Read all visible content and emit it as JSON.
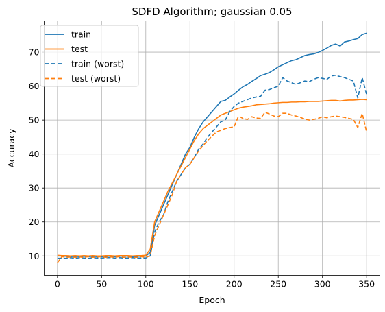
{
  "chart_data": {
    "type": "line",
    "title": "SDFD Algorithm; gaussian 0.05",
    "xlabel": "Epoch",
    "ylabel": "Accuracy",
    "xlim": [
      -15,
      365
    ],
    "ylim": [
      4.3,
      79.2
    ],
    "xticks": [
      0,
      50,
      100,
      150,
      200,
      250,
      300,
      350
    ],
    "yticks": [
      10,
      20,
      30,
      40,
      50,
      60,
      70
    ],
    "grid": true,
    "legend_position": "top-left",
    "series": [
      {
        "name": "train",
        "color": "#1f77b4",
        "dash": "solid",
        "x": [
          0,
          5,
          10,
          15,
          20,
          25,
          30,
          35,
          40,
          45,
          50,
          55,
          60,
          65,
          70,
          75,
          80,
          85,
          90,
          95,
          100,
          105,
          110,
          115,
          120,
          125,
          130,
          135,
          140,
          145,
          150,
          155,
          160,
          165,
          170,
          175,
          180,
          185,
          190,
          195,
          200,
          205,
          210,
          215,
          220,
          225,
          230,
          235,
          240,
          245,
          250,
          255,
          260,
          265,
          270,
          275,
          280,
          285,
          290,
          295,
          300,
          305,
          310,
          315,
          320,
          325,
          330,
          335,
          340,
          345,
          350
        ],
        "y": [
          10,
          10,
          9.9,
          9.8,
          9.9,
          9.8,
          9.9,
          9.8,
          9.9,
          9.8,
          9.8,
          9.9,
          9.9,
          9.8,
          9.9,
          10.0,
          9.9,
          9.8,
          9.9,
          9.9,
          10,
          11,
          19,
          22,
          25,
          28,
          31,
          34,
          37,
          40,
          42,
          45,
          47.5,
          49.5,
          51,
          52.5,
          54,
          55.5,
          55.8,
          56.8,
          57.7,
          58.8,
          59.8,
          60.5,
          61.4,
          62.2,
          63.1,
          63.5,
          64,
          64.8,
          65.7,
          66.3,
          66.9,
          67.5,
          67.8,
          68.4,
          69,
          69.3,
          69.5,
          69.9,
          70.5,
          71.2,
          72,
          72.4,
          71.8,
          73,
          73.3,
          73.7,
          74,
          75.2,
          75.6
        ]
      },
      {
        "name": "test",
        "color": "#ff7f0e",
        "dash": "solid",
        "x": [
          0,
          5,
          10,
          15,
          20,
          25,
          30,
          35,
          40,
          45,
          50,
          55,
          60,
          65,
          70,
          75,
          80,
          85,
          90,
          95,
          100,
          105,
          110,
          115,
          120,
          125,
          130,
          135,
          140,
          145,
          150,
          155,
          160,
          165,
          170,
          175,
          180,
          185,
          190,
          195,
          200,
          205,
          210,
          215,
          220,
          225,
          230,
          235,
          240,
          245,
          250,
          255,
          260,
          265,
          270,
          275,
          280,
          285,
          290,
          295,
          300,
          305,
          310,
          315,
          320,
          325,
          330,
          335,
          340,
          345,
          350
        ],
        "y": [
          10.2,
          10.1,
          10.1,
          10,
          10.1,
          10,
          10.1,
          10,
          10.1,
          10,
          10,
          10.1,
          10.1,
          10,
          10.1,
          10.1,
          10.1,
          10,
          10.1,
          10.1,
          10.2,
          12,
          20,
          23,
          26,
          29,
          31.5,
          34,
          36.5,
          39,
          41.5,
          44,
          46,
          47.5,
          48.5,
          49.5,
          50.5,
          51.5,
          52,
          52.5,
          53,
          53.5,
          53.8,
          54,
          54.2,
          54.5,
          54.6,
          54.7,
          54.8,
          55,
          55.1,
          55.2,
          55.2,
          55.3,
          55.3,
          55.4,
          55.4,
          55.5,
          55.5,
          55.5,
          55.6,
          55.7,
          55.8,
          55.8,
          55.6,
          55.8,
          55.9,
          55.9,
          56,
          56.1,
          56
        ]
      },
      {
        "name": "train (worst)",
        "color": "#1f77b4",
        "dash": "dashed",
        "x": [
          0,
          5,
          10,
          15,
          20,
          25,
          30,
          35,
          40,
          45,
          50,
          55,
          60,
          65,
          70,
          75,
          80,
          85,
          90,
          95,
          100,
          105,
          110,
          115,
          120,
          125,
          130,
          135,
          140,
          145,
          150,
          155,
          160,
          165,
          170,
          175,
          180,
          185,
          190,
          195,
          200,
          205,
          210,
          215,
          220,
          225,
          230,
          235,
          240,
          245,
          250,
          255,
          260,
          265,
          270,
          275,
          280,
          285,
          290,
          295,
          300,
          305,
          310,
          315,
          320,
          325,
          330,
          335,
          340,
          345,
          350
        ],
        "y": [
          9.3,
          9.3,
          9.3,
          9.5,
          9.3,
          9.5,
          9.4,
          9.3,
          9.5,
          9.4,
          9.4,
          9.5,
          9.5,
          9.4,
          9.5,
          9.4,
          9.4,
          9.5,
          9.4,
          9.4,
          9.4,
          10,
          17,
          20,
          22,
          26,
          29,
          32,
          34,
          36,
          37,
          39,
          41.5,
          43,
          45,
          46.5,
          48,
          49.5,
          50,
          52.5,
          54,
          55,
          55.5,
          56,
          56.5,
          56.8,
          57,
          58.8,
          59,
          59.5,
          60,
          62.5,
          61.5,
          61,
          60.5,
          61,
          61.5,
          61.3,
          62,
          62.5,
          62.3,
          62,
          63,
          63.2,
          62.8,
          62.5,
          62,
          61.5,
          56.5,
          62.5,
          57.5
        ]
      },
      {
        "name": "test (worst)",
        "color": "#ff7f0e",
        "dash": "dashed",
        "x": [
          0,
          5,
          10,
          15,
          20,
          25,
          30,
          35,
          40,
          45,
          50,
          55,
          60,
          65,
          70,
          75,
          80,
          85,
          90,
          95,
          100,
          105,
          110,
          115,
          120,
          125,
          130,
          135,
          140,
          145,
          150,
          155,
          160,
          165,
          170,
          175,
          180,
          185,
          190,
          195,
          200,
          205,
          210,
          215,
          220,
          225,
          230,
          235,
          240,
          245,
          250,
          255,
          260,
          265,
          270,
          275,
          280,
          285,
          290,
          295,
          300,
          305,
          310,
          315,
          320,
          325,
          330,
          335,
          340,
          345,
          350
        ],
        "y": [
          8,
          9.8,
          9.6,
          9.7,
          9.6,
          9.7,
          9.6,
          9.8,
          9.6,
          9.7,
          9.8,
          9.6,
          9.7,
          9.6,
          9.8,
          9.6,
          9.7,
          9.6,
          9.6,
          9.8,
          9.6,
          10,
          16,
          19,
          22,
          25,
          28,
          32,
          34,
          36,
          37,
          39,
          41,
          42.5,
          44,
          45.3,
          46.5,
          47,
          47.5,
          47.8,
          48,
          51.2,
          50.5,
          50.2,
          51,
          50.6,
          50.5,
          52.3,
          51.8,
          51.2,
          51,
          52,
          52,
          51.5,
          51.2,
          50.8,
          50.3,
          50,
          50.2,
          50.5,
          51,
          50.7,
          51,
          51.2,
          51,
          50.8,
          50.5,
          50.2,
          47.8,
          52,
          46.5
        ]
      }
    ]
  }
}
